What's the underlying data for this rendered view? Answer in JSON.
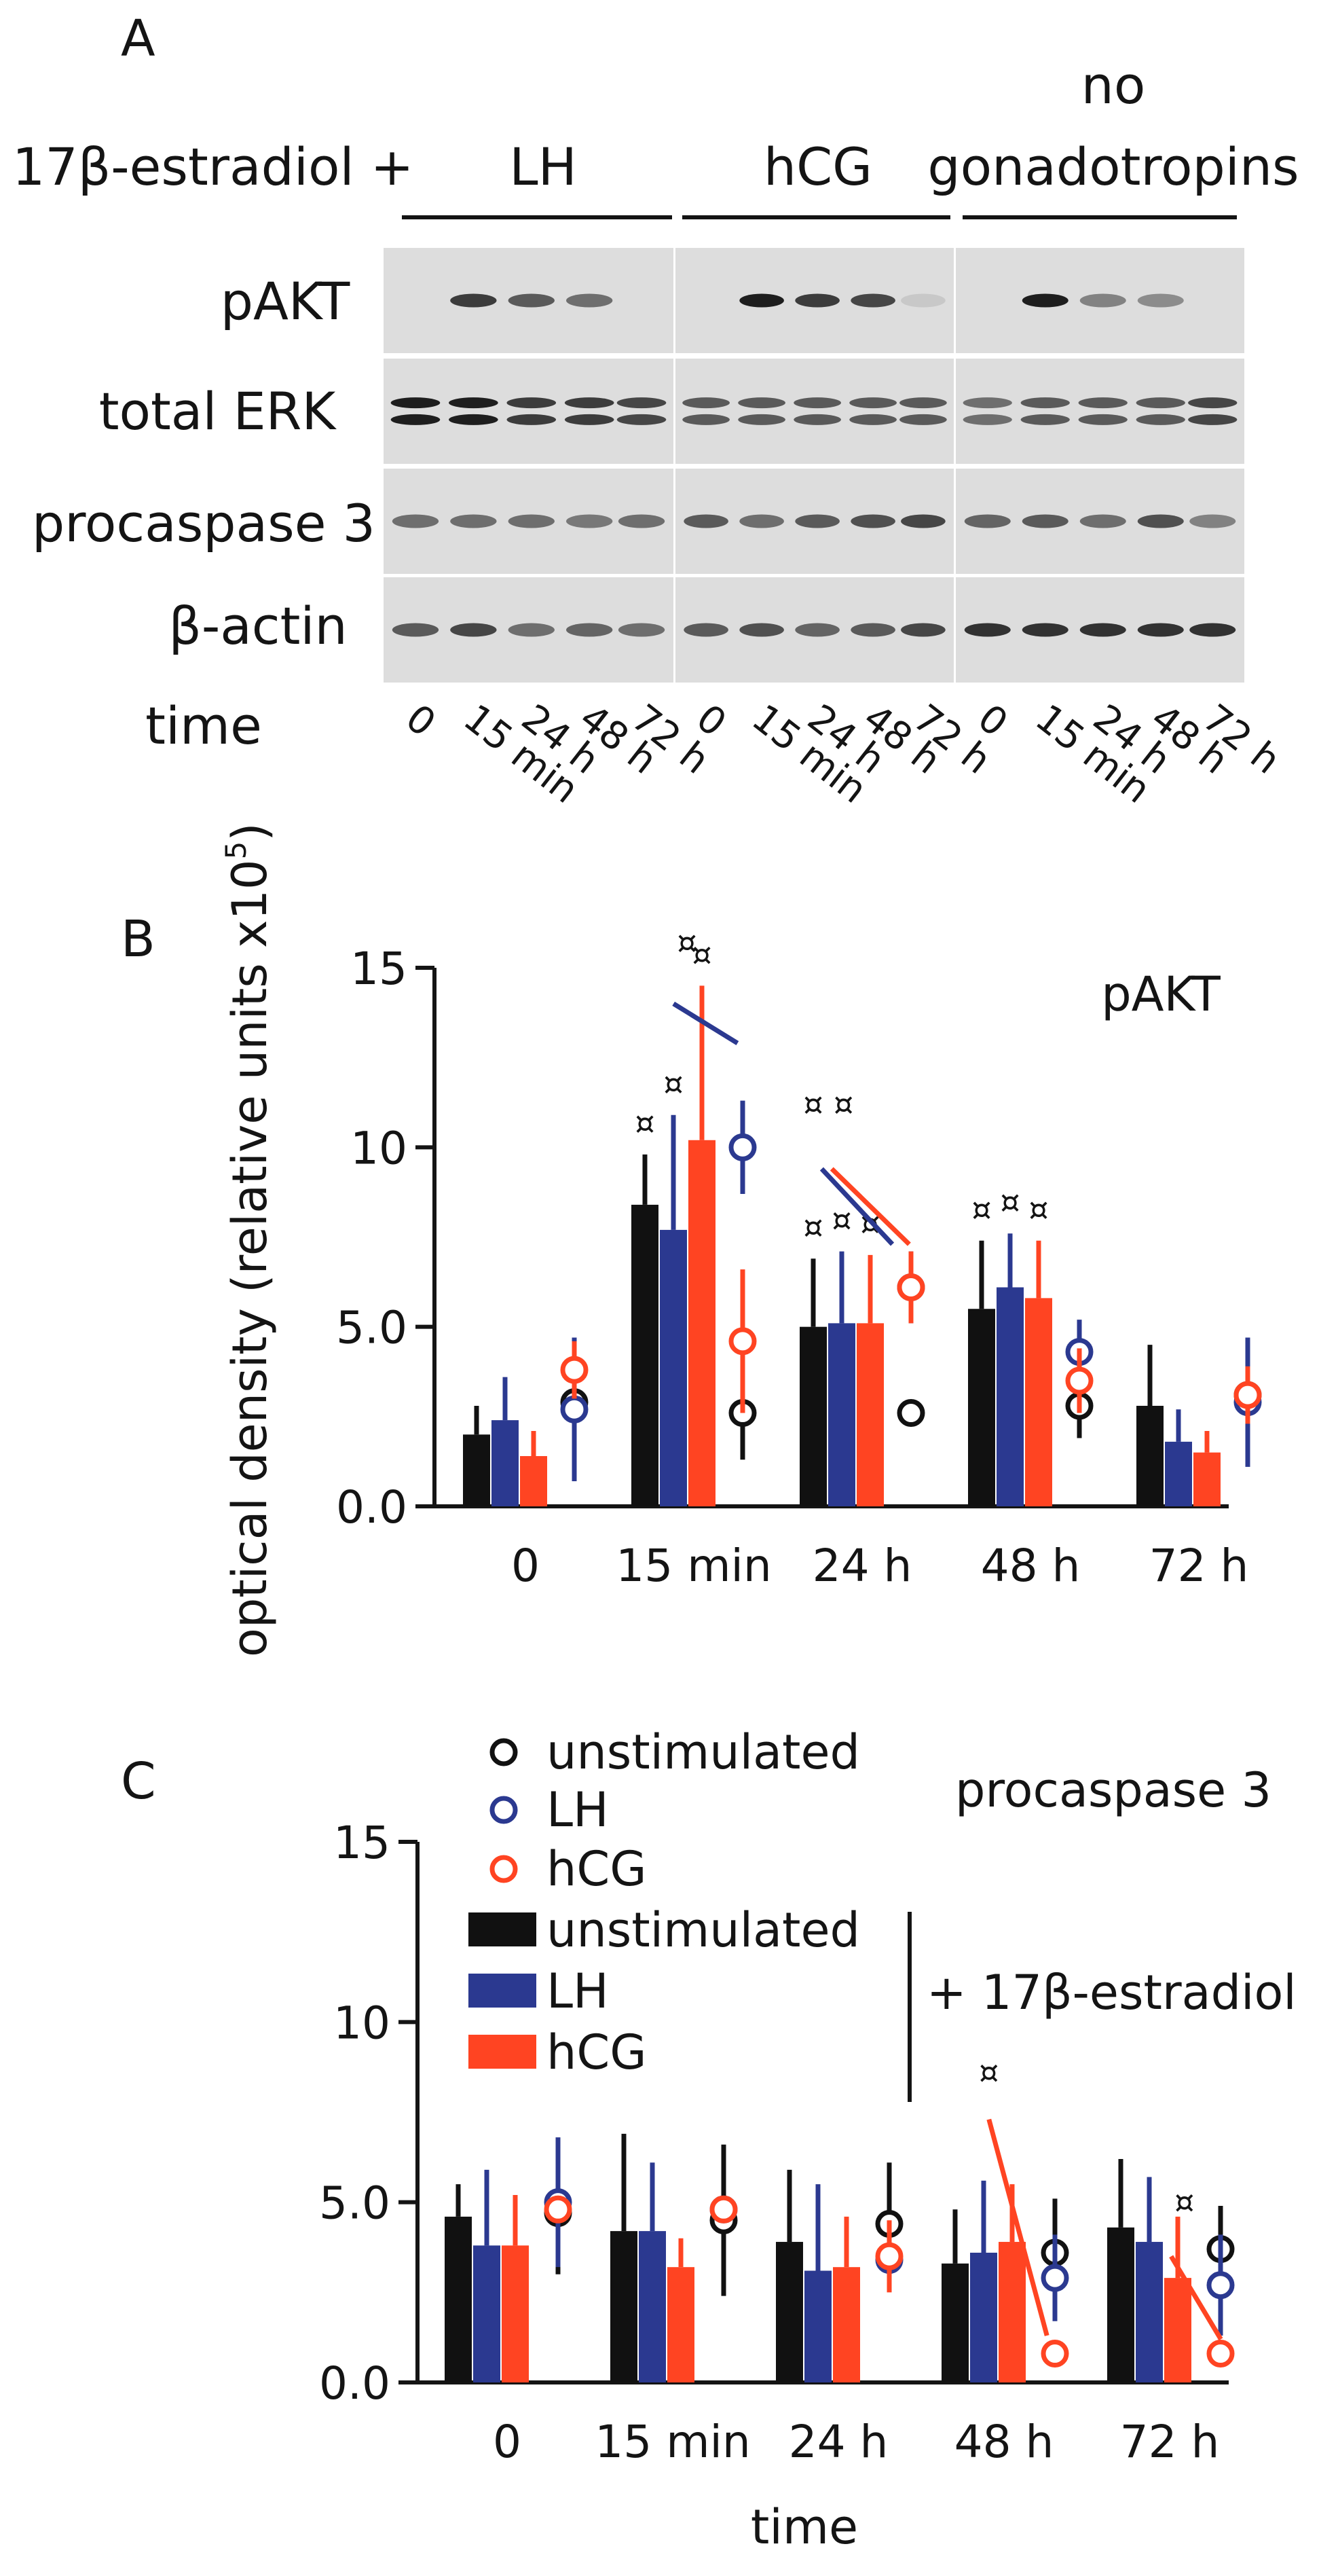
{
  "panel_a": {
    "letter": "A",
    "treatment_label": "17β-estradiol +",
    "groups": [
      "LH",
      "hCG",
      "no gonadotropins"
    ],
    "group_lines": [
      [
        "LH"
      ],
      [
        "hCG"
      ],
      [
        "no",
        "gonadotropins"
      ]
    ],
    "rows": [
      "pAKT",
      "total ERK",
      "procaspase 3",
      "β-actin"
    ],
    "time_label": "time",
    "time_ticks": [
      "0",
      "15 min",
      "24 h",
      "48 h",
      "72 h"
    ]
  },
  "chart_data": [
    {
      "panel": "B",
      "type": "bar",
      "title": "pAKT",
      "ylabel": "optical density (relative units x10",
      "ylabel_sup": "5",
      "ylabel_close": ")",
      "ylim": [
        0,
        15
      ],
      "yticks": [
        "0.0",
        "5.0",
        "10",
        "15"
      ],
      "categories": [
        "0",
        "15 min",
        "24 h",
        "48 h",
        "72 h"
      ],
      "bar_series": [
        {
          "name": "unstimulated",
          "color": "#111111",
          "values": [
            2.0,
            8.4,
            5.0,
            5.5,
            2.8
          ],
          "err": [
            0.8,
            1.4,
            1.9,
            1.9,
            1.7
          ],
          "marks": [
            false,
            true,
            true,
            true,
            false
          ]
        },
        {
          "name": "LH",
          "color": "#2b3990",
          "values": [
            2.4,
            7.7,
            5.1,
            6.1,
            1.8
          ],
          "err": [
            1.2,
            3.2,
            2.0,
            1.5,
            0.9
          ],
          "marks": [
            false,
            true,
            true,
            true,
            false
          ]
        },
        {
          "name": "hCG",
          "color": "#ff4422",
          "values": [
            1.4,
            10.2,
            5.1,
            5.8,
            1.5
          ],
          "err": [
            0.7,
            4.3,
            1.9,
            1.6,
            0.6
          ],
          "marks": [
            false,
            true,
            true,
            true,
            false
          ]
        }
      ],
      "point_series": [
        {
          "name": "unstimulated",
          "color": "#111111",
          "values": [
            2.9,
            2.6,
            2.6,
            2.8,
            3.1
          ],
          "err": [
            0.4,
            1.3,
            0.3,
            0.9,
            0.5
          ]
        },
        {
          "name": "LH",
          "color": "#2b3990",
          "values": [
            2.7,
            10.0,
            6.1,
            4.3,
            2.9
          ],
          "err": [
            2.0,
            1.3,
            1.0,
            0.9,
            1.8
          ]
        },
        {
          "name": "hCG",
          "color": "#ff4422",
          "values": [
            3.8,
            4.6,
            6.1,
            3.5,
            3.1
          ],
          "err": [
            0.8,
            2.0,
            1.0,
            0.9,
            0.8
          ]
        }
      ],
      "significance": [
        {
          "category": 1,
          "line_color": "#2b3990",
          "from": [
            1.3,
            12.9
          ],
          "to": [
            1.42,
            14.0
          ],
          "label_at": [
            1.5,
            15.4
          ]
        },
        {
          "category": 2,
          "line_color": "#2b3990",
          "from": [
            2.22,
            7.3
          ],
          "to": [
            2.3,
            9.4
          ],
          "label_at": [
            2.25,
            10.9
          ]
        },
        {
          "category": 2,
          "line_color": "#ff4422",
          "from": [
            2.32,
            7.3
          ],
          "to": [
            2.36,
            9.4
          ],
          "label_at": [
            2.43,
            10.9
          ]
        }
      ],
      "mark_symbol": "¤"
    },
    {
      "panel": "C",
      "type": "bar",
      "title": "procaspase 3",
      "xlabel": "time",
      "ylim": [
        0,
        15
      ],
      "yticks": [
        "0.0",
        "5.0",
        "10",
        "15"
      ],
      "categories": [
        "0",
        "15 min",
        "24 h",
        "48 h",
        "72 h"
      ],
      "bar_series": [
        {
          "name": "unstimulated",
          "color": "#111111",
          "values": [
            4.6,
            4.2,
            3.9,
            3.3,
            4.3
          ],
          "err": [
            0.9,
            2.7,
            2.0,
            1.5,
            1.9
          ]
        },
        {
          "name": "LH",
          "color": "#2b3990",
          "values": [
            3.8,
            4.2,
            3.1,
            3.6,
            3.9
          ],
          "err": [
            2.1,
            1.9,
            2.4,
            2.0,
            1.8
          ]
        },
        {
          "name": "hCG",
          "color": "#ff4422",
          "values": [
            3.8,
            3.2,
            3.2,
            3.9,
            2.9
          ],
          "err": [
            1.4,
            0.8,
            1.4,
            1.6,
            1.7
          ]
        }
      ],
      "point_series": [
        {
          "name": "unstimulated",
          "color": "#111111",
          "values": [
            4.7,
            4.5,
            4.4,
            3.6,
            3.7
          ],
          "err": [
            1.7,
            2.1,
            1.7,
            1.5,
            1.2
          ]
        },
        {
          "name": "LH",
          "color": "#2b3990",
          "values": [
            5.0,
            4.8,
            3.4,
            2.9,
            2.7
          ],
          "err": [
            1.8,
            0.3,
            0.8,
            1.2,
            1.4
          ]
        },
        {
          "name": "hCG",
          "color": "#ff4422",
          "values": [
            4.8,
            4.8,
            3.5,
            0.8,
            0.8
          ],
          "err": [
            0.2,
            0.2,
            1.0,
            0.1,
            0.1
          ]
        }
      ],
      "significance": [
        {
          "category": 3,
          "line_color": "#ff4422",
          "from": [
            3.3,
            1.3
          ],
          "to": [
            3.45,
            7.3
          ],
          "label_at": [
            3.45,
            8.3
          ]
        },
        {
          "category": 4,
          "line_color": "#ff4422",
          "from": [
            4.35,
            1.2
          ],
          "to": [
            4.55,
            3.5
          ],
          "label_at": [
            4.63,
            4.7
          ]
        }
      ],
      "mark_symbol": "¤",
      "legend": {
        "location": "upper-left",
        "circle_entries": [
          {
            "label": "unstimulated",
            "color": "#111111"
          },
          {
            "label": "LH",
            "color": "#2b3990"
          },
          {
            "label": "hCG",
            "color": "#ff4422"
          }
        ],
        "bar_entries": [
          {
            "label": "unstimulated",
            "color": "#111111"
          },
          {
            "label": "LH",
            "color": "#2b3990"
          },
          {
            "label": "hCG",
            "color": "#ff4422"
          }
        ],
        "bracket_label": "+ 17β-estradiol"
      }
    }
  ],
  "panel_letters": {
    "b": "B",
    "c": "C"
  }
}
